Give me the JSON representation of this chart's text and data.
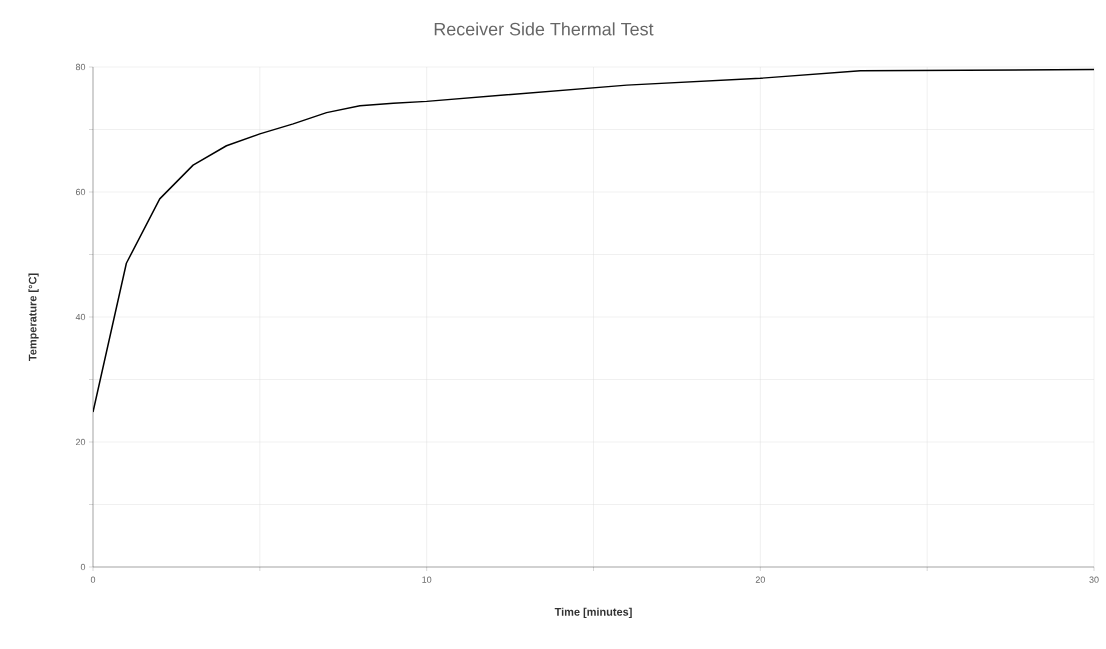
{
  "chart_data": {
    "type": "line",
    "title": "Receiver Side Thermal Test",
    "xlabel": "Time [minutes]",
    "ylabel": "Temperature [°C]",
    "x": [
      0,
      1,
      2,
      3,
      4,
      5,
      6,
      7,
      8,
      9,
      10,
      16,
      20,
      23,
      30
    ],
    "series": [
      {
        "color": "#000000",
        "values": [
          24.8,
          48.6,
          58.9,
          64.3,
          67.4,
          69.3,
          70.9,
          72.7,
          73.8,
          74.2,
          74.5,
          77.1,
          78.2,
          79.4,
          79.6
        ]
      }
    ],
    "xlim": [
      0,
      30
    ],
    "ylim": [
      0,
      80
    ],
    "xticks": [
      0,
      {
        "value": 5,
        "label": null
      },
      10,
      {
        "value": 15,
        "label": null
      },
      20,
      {
        "value": 25,
        "label": null
      },
      30
    ],
    "yticks": [
      0,
      {
        "value": 10,
        "label": null
      },
      20,
      {
        "value": 30,
        "label": null
      },
      40,
      {
        "value": 50,
        "label": null
      },
      60,
      {
        "value": 70,
        "label": null
      },
      80
    ],
    "grid": true,
    "marker": "none",
    "line_style": "solid"
  }
}
